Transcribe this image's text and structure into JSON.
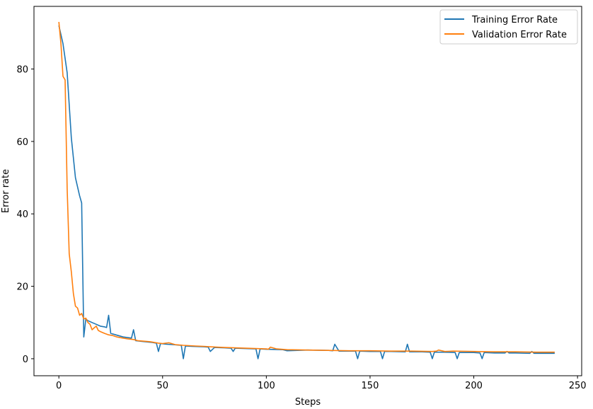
{
  "chart_data": {
    "type": "line",
    "title": "",
    "xlabel": "Steps",
    "ylabel": "Error rate",
    "xlim": [
      -12,
      252
    ],
    "ylim": [
      -4.7,
      97.3
    ],
    "xticks": [
      0,
      50,
      100,
      150,
      200,
      250
    ],
    "yticks": [
      0,
      20,
      40,
      60,
      80
    ],
    "grid": false,
    "legend_position": "top-right",
    "series": [
      {
        "name": "Training Error Rate",
        "color": "#1f77b4",
        "x": [
          0,
          2,
          4,
          6,
          8,
          10,
          11,
          12,
          13,
          14,
          16,
          18,
          20,
          22,
          23,
          24,
          25,
          28,
          31,
          35,
          36,
          37,
          40,
          45,
          47,
          48,
          49,
          52,
          55,
          59,
          60,
          61,
          64,
          70,
          72,
          73,
          75,
          80,
          83,
          84,
          85,
          90,
          95,
          96,
          97,
          100,
          108,
          110,
          120,
          130,
          132,
          133,
          135,
          143,
          144,
          145,
          150,
          155,
          156,
          157,
          160,
          167,
          168,
          169,
          175,
          179,
          180,
          181,
          185,
          191,
          192,
          193,
          200,
          203,
          204,
          205,
          210,
          215,
          216,
          217,
          220,
          227,
          228,
          229,
          232,
          235,
          239
        ],
        "y": [
          92,
          87,
          79,
          61,
          50,
          45,
          43,
          6,
          11,
          10.5,
          10,
          9.5,
          9,
          8.8,
          8.6,
          12,
          7,
          6.5,
          6,
          5.7,
          8,
          5,
          4.8,
          4.5,
          4.3,
          2,
          4.2,
          4,
          3.9,
          3.7,
          0,
          3.5,
          3.4,
          3.3,
          3.2,
          2,
          3.1,
          3,
          2.9,
          2,
          2.9,
          2.8,
          2.7,
          0,
          2.7,
          2.6,
          2.5,
          2.2,
          2.4,
          2.3,
          2.2,
          4,
          2.1,
          2.1,
          0,
          2.1,
          2,
          2,
          0,
          2,
          2,
          1.9,
          4,
          1.9,
          1.9,
          1.8,
          0,
          1.8,
          1.8,
          1.7,
          0,
          1.7,
          1.7,
          1.6,
          0,
          1.7,
          1.6,
          1.6,
          2,
          1.6,
          1.6,
          1.5,
          2,
          1.5,
          1.5,
          1.5,
          1.5
        ]
      },
      {
        "name": "Validation Error Rate",
        "color": "#ff7f0e",
        "x": [
          0,
          1,
          2,
          3,
          4,
          5,
          6,
          7,
          8,
          9,
          10,
          11,
          12,
          13,
          14,
          15,
          16,
          17,
          18,
          19,
          20,
          22,
          24,
          26,
          28,
          30,
          33,
          36,
          38,
          40,
          42,
          44,
          46,
          48,
          50,
          53,
          56,
          60,
          63,
          66,
          70,
          73,
          76,
          80,
          85,
          90,
          95,
          100,
          101,
          102,
          105,
          110,
          120,
          130,
          140,
          150,
          160,
          170,
          180,
          182,
          183,
          186,
          190,
          200,
          210,
          220,
          230,
          239
        ],
        "y": [
          93,
          87,
          78,
          77,
          47,
          29,
          24,
          18,
          14.5,
          14,
          12,
          12.5,
          11,
          11.2,
          10,
          9.5,
          8,
          8.5,
          9,
          7.8,
          7.5,
          7,
          6.6,
          6.4,
          6,
          5.8,
          5.5,
          5.3,
          5,
          4.9,
          4.8,
          4.7,
          4.5,
          4.3,
          4.2,
          4.4,
          3.9,
          3.7,
          3.6,
          3.5,
          3.4,
          3.3,
          3.2,
          3.1,
          3,
          2.9,
          2.8,
          2.7,
          2.6,
          3.2,
          2.7,
          2.5,
          2.4,
          2.3,
          2.2,
          2.2,
          2.1,
          2.1,
          2,
          2.1,
          2.4,
          2,
          2.1,
          2,
          1.9,
          1.9,
          1.8,
          1.8
        ]
      }
    ]
  }
}
